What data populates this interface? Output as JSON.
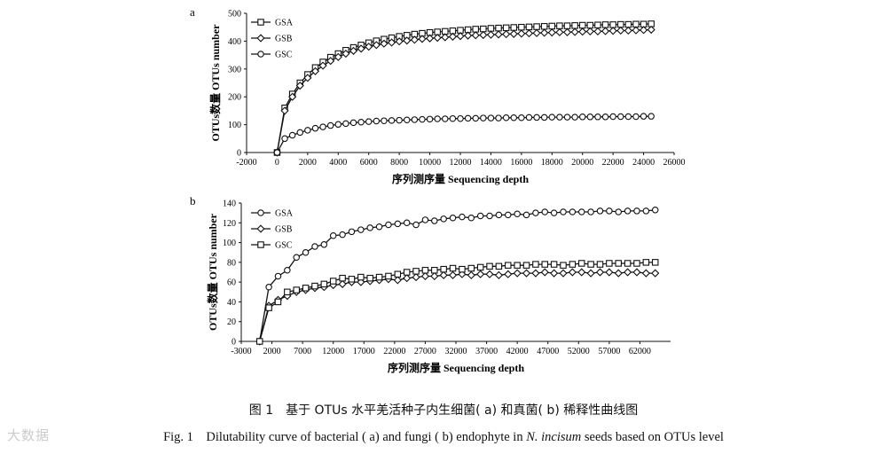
{
  "chart_data": [
    {
      "panel": "a",
      "type": "line",
      "xlabel": "序列测序量 Sequencing depth",
      "ylabel": "OTUs数量 OTUs number",
      "xlim": [
        -2000,
        26000
      ],
      "ylim": [
        0,
        500
      ],
      "xticks": [
        -2000,
        0,
        2000,
        4000,
        6000,
        8000,
        10000,
        12000,
        14000,
        16000,
        18000,
        20000,
        22000,
        24000,
        26000
      ],
      "yticks": [
        0,
        100,
        200,
        300,
        400,
        500
      ],
      "legend": "top-left",
      "x": [
        0,
        500,
        1000,
        1500,
        2000,
        2500,
        3000,
        3500,
        4000,
        4500,
        5000,
        5500,
        6000,
        6500,
        7000,
        7500,
        8000,
        8500,
        9000,
        9500,
        10000,
        10500,
        11000,
        11500,
        12000,
        12500,
        13000,
        13500,
        14000,
        14500,
        15000,
        15500,
        16000,
        16500,
        17000,
        17500,
        18000,
        18500,
        19000,
        19500,
        20000,
        20500,
        21000,
        21500,
        22000,
        22500,
        23000,
        23500,
        24000,
        24500
      ],
      "series": [
        {
          "name": "GSA",
          "marker": "square",
          "values": [
            0,
            160,
            210,
            250,
            280,
            305,
            325,
            342,
            355,
            367,
            377,
            386,
            394,
            401,
            407,
            412,
            417,
            421,
            425,
            428,
            431,
            433,
            435,
            437,
            439,
            441,
            443,
            444,
            446,
            447,
            448,
            449,
            450,
            451,
            452,
            453,
            454,
            455,
            455,
            456,
            457,
            457,
            458,
            459,
            459,
            460,
            460,
            461,
            461,
            462
          ]
        },
        {
          "name": "GSB",
          "marker": "diamond",
          "values": [
            0,
            150,
            200,
            240,
            268,
            292,
            312,
            329,
            343,
            355,
            365,
            373,
            380,
            386,
            391,
            395,
            399,
            402,
            405,
            408,
            410,
            412,
            414,
            416,
            418,
            420,
            421,
            422,
            423,
            424,
            425,
            426,
            427,
            428,
            429,
            430,
            431,
            432,
            432,
            433,
            434,
            435,
            435,
            436,
            437,
            438,
            438,
            439,
            440,
            441
          ]
        },
        {
          "name": "GSC",
          "marker": "circle",
          "values": [
            0,
            50,
            62,
            72,
            80,
            87,
            92,
            97,
            101,
            104,
            107,
            109,
            111,
            113,
            114,
            115,
            116,
            117,
            118,
            119,
            120,
            121,
            121,
            122,
            122,
            123,
            123,
            124,
            124,
            124,
            125,
            125,
            125,
            126,
            126,
            126,
            127,
            127,
            127,
            127,
            128,
            128,
            128,
            128,
            129,
            129,
            129,
            129,
            130,
            130
          ]
        }
      ]
    },
    {
      "panel": "b",
      "type": "line",
      "xlabel": "序列测序量 Sequencing depth",
      "ylabel": "OTUs数量 OTUs number",
      "xlim": [
        -3000,
        67000
      ],
      "ylim": [
        0,
        140
      ],
      "xticks": [
        -3000,
        2000,
        7000,
        12000,
        17000,
        22000,
        27000,
        32000,
        37000,
        42000,
        47000,
        52000,
        57000,
        62000
      ],
      "yticks": [
        0,
        20,
        40,
        60,
        80,
        100,
        120,
        140
      ],
      "legend": "top-left",
      "x": [
        0,
        1500,
        3000,
        4500,
        6000,
        7500,
        9000,
        10500,
        12000,
        13500,
        15000,
        16500,
        18000,
        19500,
        21000,
        22500,
        24000,
        25500,
        27000,
        28500,
        30000,
        31500,
        33000,
        34500,
        36000,
        37500,
        39000,
        40500,
        42000,
        43500,
        45000,
        46500,
        48000,
        49500,
        51000,
        52500,
        54000,
        55500,
        57000,
        58500,
        60000,
        61500,
        63000,
        64500
      ],
      "series": [
        {
          "name": "GSA",
          "marker": "circle",
          "values": [
            0,
            55,
            66,
            72,
            85,
            90,
            96,
            98,
            107,
            108,
            111,
            113,
            115,
            116,
            118,
            119,
            120,
            118,
            123,
            122,
            124,
            125,
            126,
            125,
            127,
            127,
            128,
            128,
            129,
            128,
            130,
            131,
            130,
            131,
            131,
            131,
            131,
            132,
            132,
            131,
            132,
            132,
            132,
            133
          ]
        },
        {
          "name": "GSB",
          "marker": "diamond",
          "values": [
            0,
            36,
            42,
            46,
            50,
            52,
            54,
            55,
            57,
            58,
            60,
            60,
            61,
            62,
            63,
            62,
            64,
            65,
            66,
            66,
            67,
            67,
            68,
            67,
            68,
            68,
            67,
            68,
            69,
            69,
            69,
            70,
            69,
            69,
            70,
            70,
            69,
            70,
            70,
            69,
            70,
            70,
            69,
            69
          ]
        },
        {
          "name": "GSC",
          "marker": "square",
          "values": [
            0,
            34,
            40,
            50,
            52,
            54,
            56,
            58,
            61,
            64,
            63,
            65,
            64,
            65,
            66,
            68,
            70,
            71,
            72,
            72,
            73,
            74,
            73,
            74,
            75,
            76,
            76,
            77,
            77,
            77,
            78,
            78,
            78,
            77,
            78,
            79,
            78,
            78,
            79,
            79,
            79,
            79,
            80,
            80
          ]
        }
      ]
    }
  ],
  "caption": {
    "cn": "图 1　基于 OTUs 水平羌活种子内生细菌( a) 和真菌( b) 稀释性曲线图",
    "en_prefix": "Fig. 1　Dilutability curve of bacterial ( a)  and fungi ( b)  endophyte in ",
    "en_italic": "N. incisum",
    "en_suffix": " seeds based on OTUs level"
  },
  "watermark": "大数据"
}
